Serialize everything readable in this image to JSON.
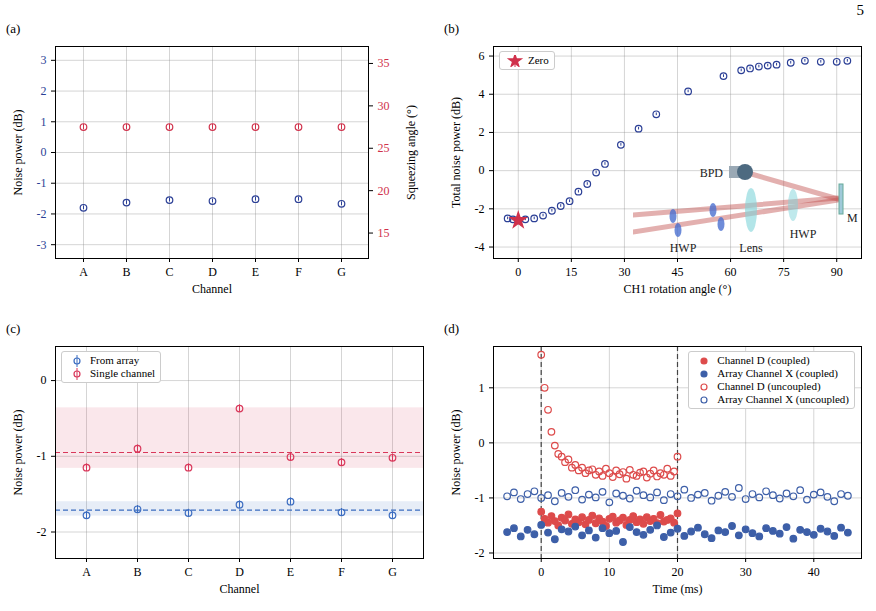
{
  "page_number": "5",
  "chart_data": [
    {
      "panel": "(a)",
      "type": "scatter",
      "x_label": "Channel",
      "y_label": "Noise power (dB)",
      "y2_label": "Squeezing angle (°)",
      "categories": [
        "A",
        "B",
        "C",
        "D",
        "E",
        "F",
        "G"
      ],
      "ylim": [
        -3.45,
        3.45
      ],
      "yticks": [
        -3,
        -2,
        -1,
        0,
        1,
        2,
        3
      ],
      "y2lim": [
        12,
        37
      ],
      "y2ticks": [
        15,
        20,
        25,
        30,
        35
      ],
      "grid": true,
      "series": [
        {
          "color": "#2b3f96",
          "marker": "open_circle",
          "values": [
            -1.8,
            -1.63,
            -1.55,
            -1.58,
            -1.52,
            -1.52,
            -1.67
          ],
          "errors": [
            0.06,
            0.06,
            0.06,
            0.06,
            0.06,
            0.06,
            0.06
          ]
        },
        {
          "color": "#d0314b",
          "marker": "open_circle",
          "axis": "y2",
          "values": [
            27.5,
            27.5,
            27.5,
            27.5,
            27.5,
            27.5,
            27.5
          ],
          "errors": [
            0.3,
            0.3,
            0.3,
            0.3,
            0.3,
            0.3,
            0.3
          ]
        }
      ]
    },
    {
      "panel": "(b)",
      "type": "scatter",
      "x_label": "CH1 rotation angle (°)",
      "y_label": "Total noise power (dB)",
      "xlim": [
        -7,
        97
      ],
      "xticks": [
        0,
        15,
        30,
        45,
        60,
        75,
        90
      ],
      "ylim": [
        -4.6,
        6.5
      ],
      "yticks": [
        -4,
        -2,
        0,
        2,
        4,
        6
      ],
      "grid": true,
      "legend": "top-left",
      "inset_labels": [
        "BPD",
        "HWP",
        "Lens",
        "HWP",
        "M"
      ],
      "series": [
        {
          "color": "#2b3f96",
          "marker": "open_circle",
          "x": [
            -3,
            -1.5,
            0,
            2,
            4.5,
            7,
            9.5,
            12,
            14.5,
            17,
            19.5,
            22,
            24.5,
            29,
            34,
            39,
            48,
            58,
            63,
            65.5,
            68,
            70.5,
            73,
            77,
            81,
            85.5,
            90,
            93
          ],
          "values": [
            -2.5,
            -2.55,
            -2.6,
            -2.55,
            -2.5,
            -2.35,
            -2.1,
            -1.85,
            -1.6,
            -1.1,
            -0.7,
            -0.1,
            0.35,
            1.35,
            2.2,
            2.95,
            4.15,
            4.95,
            5.25,
            5.35,
            5.45,
            5.5,
            5.55,
            5.65,
            5.75,
            5.7,
            5.7,
            5.75
          ],
          "errors": [
            0.07,
            0.07,
            0.07,
            0.07,
            0.07,
            0.07,
            0.07,
            0.07,
            0.07,
            0.07,
            0.07,
            0.07,
            0.07,
            0.07,
            0.07,
            0.07,
            0.07,
            0.07,
            0.07,
            0.07,
            0.07,
            0.07,
            0.07,
            0.07,
            0.07,
            0.07,
            0.07,
            0.07
          ]
        },
        {
          "name": "Zero",
          "color": "#d0314b",
          "marker": "star",
          "x": [
            0
          ],
          "values": [
            -2.6
          ],
          "errors": [
            0.08
          ]
        }
      ]
    },
    {
      "panel": "(c)",
      "type": "scatter",
      "x_label": "Channel",
      "y_label": "Noise power (dB)",
      "categories": [
        "A",
        "B",
        "C",
        "D",
        "E",
        "F",
        "G"
      ],
      "ylim": [
        -2.35,
        0.45
      ],
      "yticks": [
        -2,
        -1,
        0
      ],
      "grid": true,
      "legend": "top-left",
      "series": [
        {
          "name": "From array",
          "color": "#3b6cc0",
          "marker": "open_circle",
          "values": [
            -1.78,
            -1.7,
            -1.75,
            -1.64,
            -1.6,
            -1.74,
            -1.78
          ],
          "errors": [
            0.05,
            0.05,
            0.05,
            0.05,
            0.05,
            0.05,
            0.05
          ],
          "mean_line": -1.71,
          "band": [
            -1.79,
            -1.6
          ]
        },
        {
          "name": "Single channel",
          "color": "#d9375a",
          "marker": "open_circle",
          "values": [
            -1.15,
            -0.9,
            -1.15,
            -0.37,
            -1.01,
            -1.08,
            -1.02
          ],
          "errors": [
            0.05,
            0.05,
            0.05,
            0.05,
            0.05,
            0.05,
            0.05
          ],
          "mean_line": -0.95,
          "band": [
            -1.16,
            -0.36
          ]
        }
      ]
    },
    {
      "panel": "(d)",
      "type": "scatter",
      "x_label": "Time (ms)",
      "y_label": "Noise power (dB)",
      "xlim": [
        -7,
        47
      ],
      "xticks": [
        0,
        10,
        20,
        30,
        40
      ],
      "ylim": [
        -2.1,
        1.75
      ],
      "yticks": [
        -2,
        -1,
        0,
        1
      ],
      "grid": true,
      "legend": "top-right",
      "vlines": [
        0,
        20
      ],
      "series": [
        {
          "name": "Channel D (coupled)",
          "color": "#dd4b4b",
          "marker": "filled_circle",
          "x": [
            0,
            0.5,
            1,
            1.5,
            2,
            2.5,
            3,
            3.5,
            4,
            4.5,
            5,
            5.5,
            6,
            6.5,
            7,
            7.5,
            8,
            8.5,
            9,
            9.5,
            10,
            10.5,
            11,
            11.5,
            12,
            12.5,
            13,
            13.5,
            14,
            14.5,
            15,
            15.5,
            16,
            16.5,
            17,
            17.5,
            18,
            18.5,
            19,
            19.5,
            20
          ],
          "values": [
            -1.25,
            -1.38,
            -1.45,
            -1.33,
            -1.42,
            -1.5,
            -1.36,
            -1.41,
            -1.3,
            -1.47,
            -1.39,
            -1.44,
            -1.35,
            -1.48,
            -1.4,
            -1.32,
            -1.46,
            -1.37,
            -1.43,
            -1.51,
            -1.38,
            -1.34,
            -1.45,
            -1.41,
            -1.36,
            -1.49,
            -1.4,
            -1.33,
            -1.44,
            -1.39,
            -1.47,
            -1.35,
            -1.42,
            -1.38,
            -1.46,
            -1.31,
            -1.43,
            -1.4,
            -1.37,
            -1.45,
            -1.28
          ]
        },
        {
          "name": "Array Channel X (coupled)",
          "color": "#3d5fa8",
          "marker": "filled_circle",
          "x": [
            -5,
            -4,
            -3,
            -2,
            -1,
            0,
            1,
            2,
            3,
            4,
            5,
            6,
            7,
            8,
            9,
            10,
            11,
            12,
            13,
            14,
            15,
            16,
            17,
            18,
            19,
            20,
            21,
            22,
            23,
            24,
            25,
            26,
            27,
            28,
            29,
            30,
            31,
            32,
            33,
            34,
            35,
            36,
            37,
            38,
            39,
            40,
            41,
            42,
            43,
            44,
            45
          ],
          "values": [
            -1.62,
            -1.55,
            -1.7,
            -1.58,
            -1.66,
            -1.49,
            -1.63,
            -1.75,
            -1.57,
            -1.61,
            -1.52,
            -1.68,
            -1.59,
            -1.72,
            -1.55,
            -1.64,
            -1.6,
            -1.8,
            -1.53,
            -1.62,
            -1.67,
            -1.58,
            -1.5,
            -1.71,
            -1.63,
            -1.56,
            -1.69,
            -1.61,
            -1.54,
            -1.66,
            -1.73,
            -1.59,
            -1.62,
            -1.51,
            -1.68,
            -1.57,
            -1.64,
            -1.7,
            -1.55,
            -1.6,
            -1.65,
            -1.53,
            -1.74,
            -1.58,
            -1.62,
            -1.67,
            -1.56,
            -1.61,
            -1.69,
            -1.54,
            -1.63
          ]
        },
        {
          "name": "Channel D (uncoupled)",
          "color": "#dd4b4b",
          "marker": "open_circle",
          "x": [
            0,
            0.5,
            1,
            1.5,
            2,
            2.5,
            3,
            3.5,
            4,
            4.5,
            5,
            5.5,
            6,
            6.5,
            7,
            7.5,
            8,
            8.5,
            9,
            9.5,
            10,
            10.5,
            11,
            11.5,
            12,
            12.5,
            13,
            13.5,
            14,
            14.5,
            15,
            15.5,
            16,
            16.5,
            17,
            17.5,
            18,
            18.5,
            19,
            19.5,
            20
          ],
          "values": [
            1.6,
            1.0,
            0.6,
            0.2,
            -0.05,
            -0.2,
            -0.25,
            -0.35,
            -0.3,
            -0.45,
            -0.4,
            -0.5,
            -0.45,
            -0.55,
            -0.5,
            -0.48,
            -0.58,
            -0.52,
            -0.6,
            -0.47,
            -0.55,
            -0.62,
            -0.5,
            -0.57,
            -0.53,
            -0.65,
            -0.49,
            -0.58,
            -0.6,
            -0.54,
            -0.52,
            -0.63,
            -0.56,
            -0.5,
            -0.61,
            -0.55,
            -0.58,
            -0.47,
            -0.6,
            -0.52,
            -0.25
          ]
        },
        {
          "name": "Array Channel X (uncoupled)",
          "color": "#3d5fa8",
          "marker": "open_circle",
          "x": [
            -5,
            -4,
            -3,
            -2,
            -1,
            0,
            1,
            2,
            3,
            4,
            5,
            6,
            7,
            8,
            9,
            10,
            11,
            12,
            13,
            14,
            15,
            16,
            17,
            18,
            19,
            20,
            21,
            22,
            23,
            24,
            25,
            26,
            27,
            28,
            29,
            30,
            31,
            32,
            33,
            34,
            35,
            36,
            37,
            38,
            39,
            40,
            41,
            42,
            43,
            44,
            45
          ],
          "values": [
            -0.97,
            -0.9,
            -1.02,
            -0.93,
            -0.88,
            -1.0,
            -0.95,
            -1.06,
            -0.91,
            -0.98,
            -0.86,
            -1.03,
            -0.94,
            -0.99,
            -0.89,
            -1.08,
            -0.92,
            -0.96,
            -1.01,
            -0.87,
            -0.95,
            -0.99,
            -0.9,
            -1.04,
            -0.93,
            -0.97,
            -0.85,
            -1.0,
            -0.94,
            -0.91,
            -1.05,
            -0.96,
            -0.89,
            -0.98,
            -0.82,
            -1.02,
            -0.93,
            -0.99,
            -0.88,
            -0.95,
            -1.01,
            -0.92,
            -0.97,
            -0.86,
            -1.03,
            -0.94,
            -0.9,
            -0.98,
            -1.06,
            -0.93,
            -0.96
          ]
        }
      ]
    }
  ]
}
